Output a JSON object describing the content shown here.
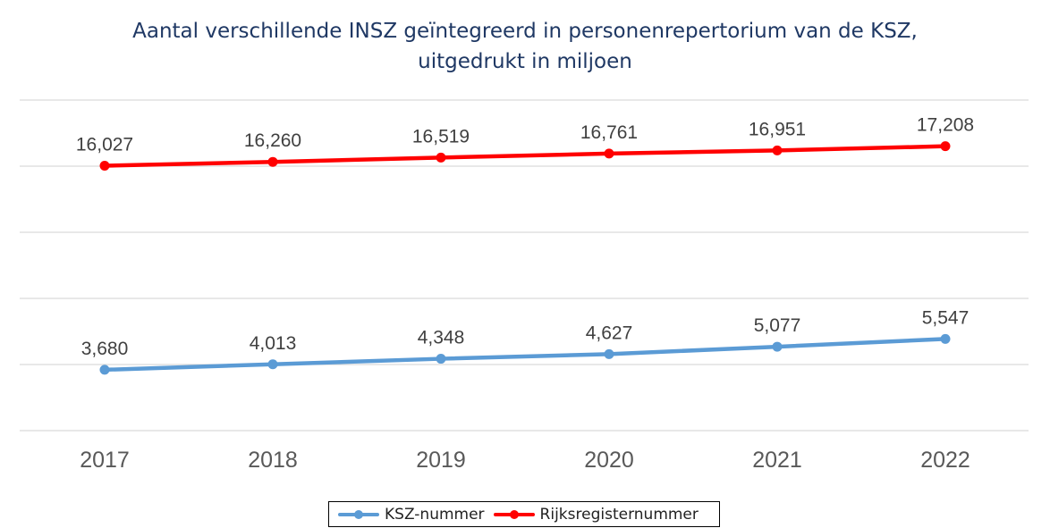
{
  "chart_data": {
    "type": "line",
    "title": "Aantal verschillende INSZ geïntegreerd in personenrepertorium van de KSZ, uitgedrukt in miljoen",
    "title_lines": [
      "Aantal verschillende INSZ geïntegreerd in personenrepertorium van de KSZ,",
      "uitgedrukt in miljoen"
    ],
    "xlabel": "",
    "ylabel": "",
    "categories": [
      "2017",
      "2018",
      "2019",
      "2020",
      "2021",
      "2022"
    ],
    "ylim": [
      0,
      20
    ],
    "y_axis_labels_visible": false,
    "grid": true,
    "legend_position": "bottom",
    "series": [
      {
        "name": "KSZ-nummer",
        "color": "#5b9bd5",
        "values": [
          3.68,
          4.013,
          4.348,
          4.627,
          5.077,
          5.547
        ],
        "labels": [
          "3,680",
          "4,013",
          "4,348",
          "4,627",
          "5,077",
          "5,547"
        ]
      },
      {
        "name": "Rijksregisternummer",
        "color": "#ff0000",
        "values": [
          16.027,
          16.26,
          16.519,
          16.761,
          16.951,
          17.208
        ],
        "labels": [
          "16,027",
          "16,260",
          "16,519",
          "16,761",
          "16,951",
          "17,208"
        ]
      }
    ]
  }
}
